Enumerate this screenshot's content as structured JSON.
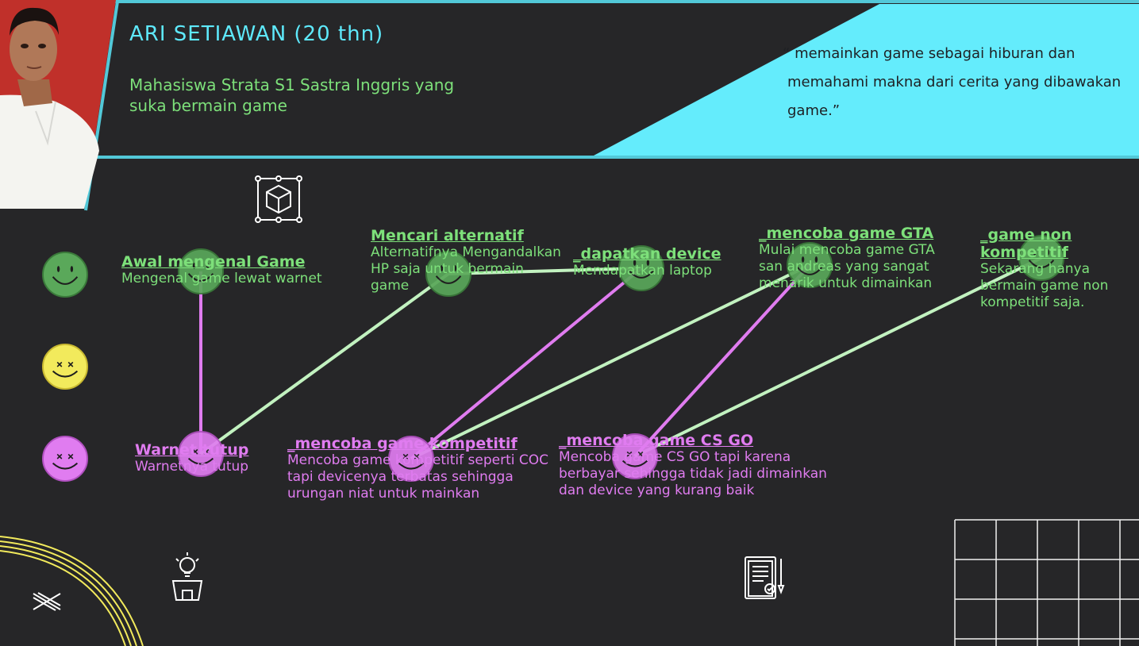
{
  "persona": {
    "name": "ARI SETIAWAN (20 thn)",
    "subtitle": "Mahasiswa Strata S1 Sastra Inggris yang suka bermain game",
    "quote_mark": "“",
    "quote": "memainkan game sebagai hiburan dan memahami makna dari cerita yang dibawakan game.”"
  },
  "legend": [
    {
      "mood": "happy",
      "color": "#5aa85a",
      "icon": "smiley-happy-icon"
    },
    {
      "mood": "neutral",
      "color": "#f2ea5c",
      "icon": "smiley-neutral-icon"
    },
    {
      "mood": "sad",
      "color": "#e07cf0",
      "icon": "smiley-sad-icon"
    }
  ],
  "journey": [
    {
      "id": "n1",
      "mood": "happy",
      "title": "Awal mengenal Game",
      "desc": "Mengenal game lewat warnet"
    },
    {
      "id": "n2",
      "mood": "sad",
      "title": "Warnet tutup",
      "desc": "Warnetnya tutup"
    },
    {
      "id": "n3",
      "mood": "happy",
      "title": "Mencari alternatif",
      "desc": "Alternatifnya Mengandalkan HP saja untuk bermain game"
    },
    {
      "id": "n4",
      "mood": "happy",
      "title": "_dapatkan device",
      "desc": "Mendapatkan laptop"
    },
    {
      "id": "n5",
      "mood": "sad",
      "title": "_mencoba game kompetitif",
      "desc": "Mencoba game kompetitif seperti COC tapi devicenya terbatas sehingga urungan niat untuk mainkan"
    },
    {
      "id": "n6",
      "mood": "happy",
      "title": "_mencoba game GTA",
      "desc": "Mulai mencoba game GTA san andreas yang sangat menarik untuk dimainkan"
    },
    {
      "id": "n7",
      "mood": "sad",
      "title": "_mencoba game CS GO",
      "desc": "Mencoba game CS GO tapi karena berbayar sehingga tidak jadi dimainkan dan device yang kurang baik"
    },
    {
      "id": "n8",
      "mood": "happy",
      "title": "_game non kompetitif",
      "desc": "Sekarang hanya bermain game non kompetitif saja."
    }
  ],
  "colors": {
    "background": "#262628",
    "accent_cyan": "#5ee9fb",
    "happy": "#5aa85a",
    "neutral": "#f2ea5c",
    "sad": "#e07cf0",
    "line_green": "#c2f2c0",
    "text_green": "#7de07a"
  },
  "icons": [
    "profile-photo",
    "cube-icon",
    "lightbulb-box-icon",
    "clipboard-icon",
    "cross-icon",
    "grid-decoration"
  ]
}
